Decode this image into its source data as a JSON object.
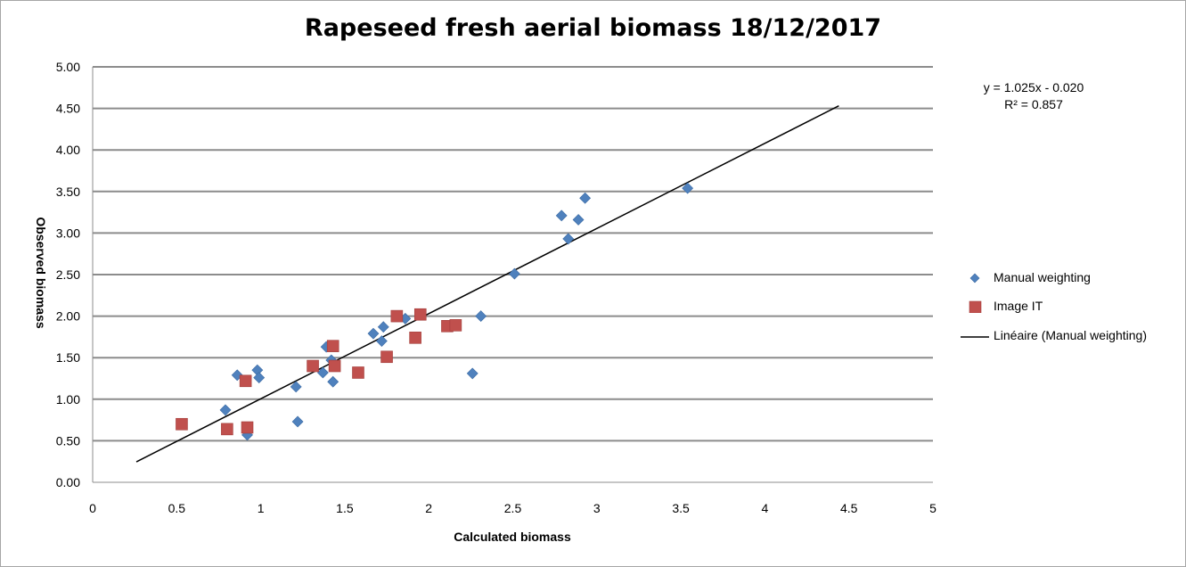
{
  "chart_data": {
    "type": "scatter",
    "title": "Rapeseed fresh aerial biomass 18/12/2017",
    "xlabel": "Calculated biomass",
    "ylabel": "Observed biomass",
    "xlim": [
      0,
      5
    ],
    "ylim": [
      0,
      5
    ],
    "x_ticks": [
      "0",
      "0.5",
      "1",
      "1.5",
      "2",
      "2.5",
      "3",
      "3.5",
      "4",
      "4.5",
      "5"
    ],
    "y_ticks": [
      "0.00",
      "0.50",
      "1.00",
      "1.50",
      "2.00",
      "2.50",
      "3.00",
      "3.50",
      "4.00",
      "4.50",
      "5.00"
    ],
    "grid": "horizontal",
    "legend_position": "right",
    "series": [
      {
        "name": "Manual weighting",
        "marker": "diamond",
        "color": "#4f81bd",
        "points": [
          [
            0.79,
            0.87
          ],
          [
            0.86,
            1.29
          ],
          [
            0.92,
            0.57
          ],
          [
            0.98,
            1.35
          ],
          [
            0.99,
            1.26
          ],
          [
            1.21,
            1.15
          ],
          [
            1.22,
            0.73
          ],
          [
            1.37,
            1.32
          ],
          [
            1.39,
            1.63
          ],
          [
            1.42,
            1.47
          ],
          [
            1.43,
            1.21
          ],
          [
            1.67,
            1.79
          ],
          [
            1.72,
            1.7
          ],
          [
            1.73,
            1.87
          ],
          [
            1.86,
            1.97
          ],
          [
            2.26,
            1.31
          ],
          [
            2.31,
            2.0
          ],
          [
            2.51,
            2.51
          ],
          [
            2.79,
            3.21
          ],
          [
            2.83,
            2.93
          ],
          [
            2.89,
            3.16
          ],
          [
            2.93,
            3.42
          ],
          [
            3.54,
            3.54
          ]
        ]
      },
      {
        "name": "Image IT",
        "marker": "square",
        "color": "#c0504d",
        "points": [
          [
            0.53,
            0.7
          ],
          [
            0.8,
            0.64
          ],
          [
            0.91,
            1.22
          ],
          [
            0.92,
            0.66
          ],
          [
            1.31,
            1.4
          ],
          [
            1.43,
            1.64
          ],
          [
            1.44,
            1.4
          ],
          [
            1.58,
            1.32
          ],
          [
            1.75,
            1.51
          ],
          [
            1.81,
            2.0
          ],
          [
            1.92,
            1.74
          ],
          [
            1.95,
            2.02
          ],
          [
            2.11,
            1.88
          ],
          [
            2.16,
            1.89
          ]
        ]
      }
    ],
    "trendline": {
      "name": "Linéaire (Manual weighting)",
      "color": "#000000",
      "slope": 1.025,
      "intercept": -0.02,
      "x_range": [
        0.26,
        4.44
      ],
      "equation": "y = 1.025x - 0.020",
      "r_squared": "R² = 0.857"
    }
  }
}
